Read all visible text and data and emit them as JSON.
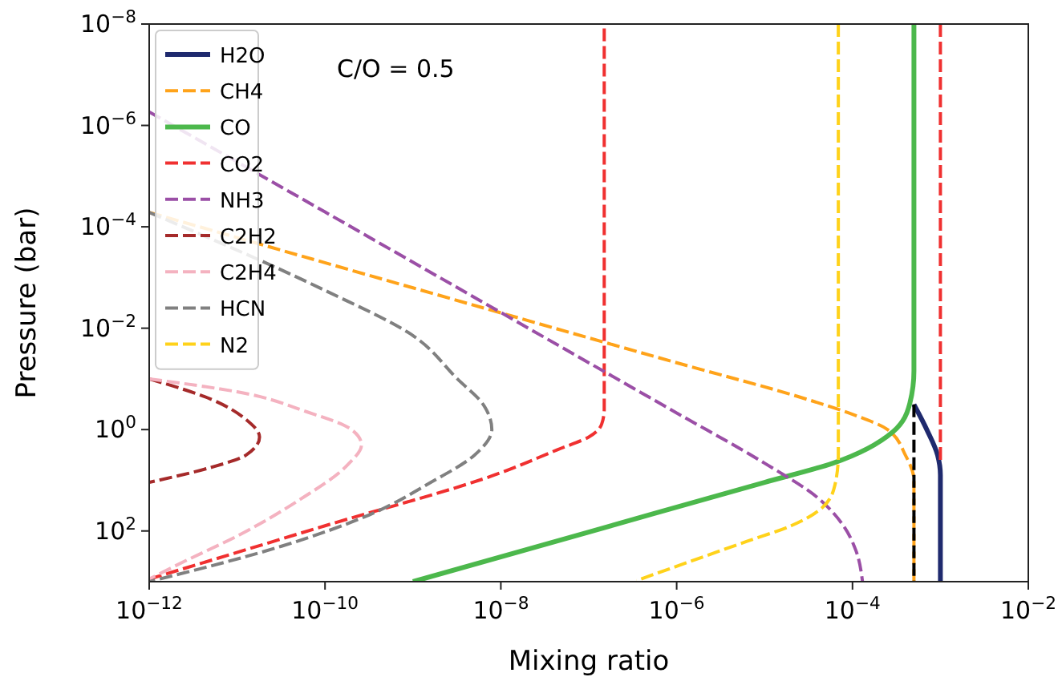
{
  "chart_data": {
    "type": "line",
    "xlabel": "Mixing ratio",
    "ylabel": "Pressure (bar)",
    "log": "xy",
    "grid": false,
    "legend": "top left",
    "xlim": [
      1e-12,
      0.01
    ],
    "ylim": [
      1000,
      1e-08
    ],
    "xticks": [
      {
        "value": 1e-12,
        "label": "10$^{−12}$"
      },
      {
        "value": 1e-10,
        "label": "10$^{−10}$"
      },
      {
        "value": 1e-08,
        "label": "10$^{−8}$"
      },
      {
        "value": 1e-06,
        "label": "10$^{−6}$"
      },
      {
        "value": 0.0001,
        "label": "10$^{−4}$"
      },
      {
        "value": 0.01,
        "label": "10$^{−2}$"
      }
    ],
    "yticks": [
      {
        "value": 1e-08,
        "label": "10$^{−8}$"
      },
      {
        "value": 1e-06,
        "label": "10$^{−6}$"
      },
      {
        "value": 0.0001,
        "label": "10$^{−4}$"
      },
      {
        "value": 0.01,
        "label": "10$^{−2}$"
      },
      {
        "value": 1,
        "label": "10$^{0}$"
      },
      {
        "value": 100,
        "label": "10$^{2}$"
      }
    ],
    "annotations": [
      "C/O = 0.5"
    ],
    "series": [
      {
        "name": "H2O",
        "color": "#1f2a6e",
        "line_style": "solid",
        "x": [
          0.0005,
          0.0007,
          0.00093,
          0.001,
          0.001
        ],
        "values": [
          0.32,
          1,
          3.2,
          7.9,
          1000
        ]
      },
      {
        "name": "CH4",
        "color": "#ffa31a",
        "line_style": "dashed",
        "x": [
          1e-12,
          1e-09,
          1e-06,
          3.2e-05,
          0.0001,
          0.00025,
          0.0004,
          0.0005,
          0.0005
        ],
        "values": [
          5.2e-05,
          0.0016,
          0.048,
          0.26,
          0.5,
          1,
          3.2,
          10,
          1000
        ]
      },
      {
        "name": "CO",
        "color": "#4cb84c",
        "line_style": "solid",
        "x": [
          1e-09,
          1e-07,
          1e-05,
          6e-05,
          0.00029,
          0.00045,
          0.0005,
          0.0005
        ],
        "values": [
          1000,
          105,
          11,
          4.6,
          1.1,
          0.3,
          0.07,
          1e-08
        ]
      },
      {
        "name": "CO2",
        "color": "#f03030",
        "line_style": "dashed",
        "x": [
          1e-12,
          1e-10,
          1e-08,
          4.4e-08,
          1e-07,
          1.4e-07,
          1.5e-07,
          1.5e-07
        ],
        "values": [
          890,
          79,
          7.1,
          2.5,
          1.4,
          0.79,
          0.4,
          1e-08
        ]
      },
      {
        "name": "NH3",
        "color": "#9b4fa6",
        "line_style": "dashed",
        "x": [
          1e-12,
          1e-10,
          1e-08,
          1e-06,
          1e-05,
          4e-05,
          7.9e-05,
          0.00011,
          0.00013
        ],
        "values": [
          5.4e-07,
          5.1e-05,
          0.0049,
          0.47,
          4.6,
          22,
          79,
          250,
          1000
        ]
      },
      {
        "name": "C2H2",
        "color": "#a52a2a",
        "line_style": "dashed",
        "x": [
          1e-12,
          5e-12,
          1.26e-11,
          1.8e-11,
          1.26e-11,
          5e-12,
          1e-12
        ],
        "values": [
          0.1,
          0.25,
          0.63,
          1.4,
          3.2,
          5.6,
          11
        ]
      },
      {
        "name": "C2H4",
        "color": "#f4b2c0",
        "line_style": "dashed",
        "x": [
          1e-12,
          1e-11,
          6.3e-11,
          2e-10,
          2.6e-10,
          1.8e-10,
          5e-11,
          1e-11,
          2.5e-12,
          1e-12
        ],
        "values": [
          0.1,
          0.18,
          0.45,
          1,
          2,
          5,
          25,
          126,
          400,
          890
        ]
      },
      {
        "name": "HCN",
        "color": "#808080",
        "line_style": "dashed",
        "x": [
          1e-12,
          1e-11,
          1e-10,
          1e-09,
          3.2e-09,
          6.3e-09,
          7.9e-09,
          5e-09,
          1.6e-09,
          3.2e-10,
          3.2e-11,
          1e-12
        ],
        "values": [
          5.2e-05,
          null,
          0.0018,
          0.014,
          0.1,
          0.32,
          1,
          3.2,
          11,
          48,
          200,
          1000
        ]
      },
      {
        "name": "N2",
        "color": "#ffd21a",
        "line_style": "dashed",
        "x": [
          6.9e-05,
          6.9e-05,
          6.3e-05,
          4.5e-05,
          2e-05,
          6.3e-06,
          3.5e-07
        ],
        "values": [
          1e-08,
          3.2,
          12.6,
          35,
          79,
          160,
          950
        ]
      },
      {
        "color": "#f03030",
        "line_style": "dashed",
        "x": [
          0.001,
          0.001
        ],
        "values": [
          1e-08,
          4.8
        ]
      },
      {
        "color": "#000000",
        "line_style": "dashed",
        "x": [
          0.0005,
          0.0005
        ],
        "values": [
          0.32,
          1000
        ]
      }
    ]
  }
}
